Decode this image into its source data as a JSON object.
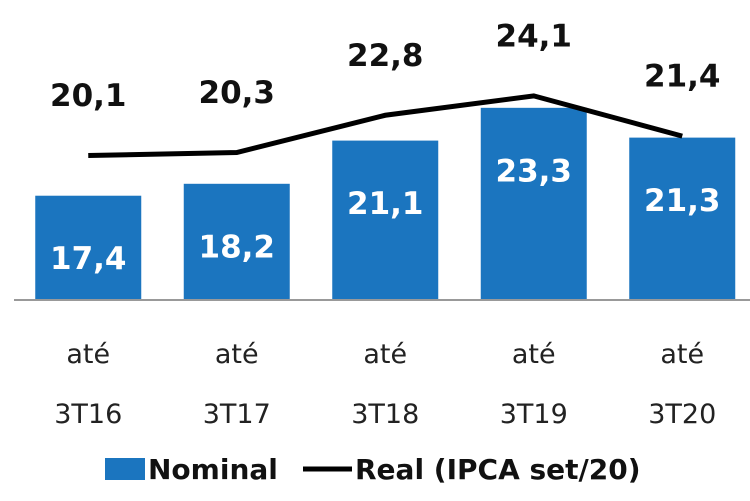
{
  "chart_data": {
    "type": "bar",
    "categories": [
      "até 3T16",
      "até 3T17",
      "até 3T18",
      "até 3T19",
      "até 3T20"
    ],
    "series": [
      {
        "name": "Nominal",
        "color": "#1b75bf",
        "values": [
          17.4,
          18.2,
          21.1,
          23.3,
          21.3
        ],
        "value_labels": [
          "17,4",
          "18,2",
          "21,1",
          "23,3",
          "21,3"
        ]
      },
      {
        "name": "Real (IPCA set/20)",
        "type": "line",
        "color": "#000000",
        "values": [
          20.1,
          20.3,
          22.8,
          24.1,
          21.4
        ],
        "value_labels": [
          "20,1",
          "20,3",
          "22,8",
          "24,1",
          "21,4"
        ]
      }
    ],
    "ylim": [
      10.4,
      30
    ]
  }
}
